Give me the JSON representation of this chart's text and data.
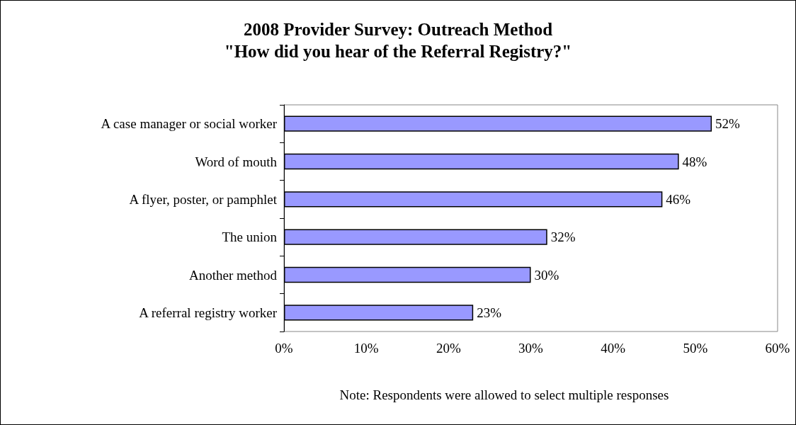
{
  "chart_data": {
    "type": "bar",
    "orientation": "horizontal",
    "title": "2008 Provider Survey: Outreach Method",
    "subtitle": "\"How did you hear of the Referral Registry?\"",
    "categories": [
      "A case manager or social worker",
      "Word of mouth",
      "A flyer, poster, or pamphlet",
      "The union",
      "Another method",
      "A referral registry worker"
    ],
    "values": [
      52,
      48,
      46,
      32,
      30,
      23
    ],
    "value_labels": [
      "52%",
      "48%",
      "46%",
      "32%",
      "30%",
      "23%"
    ],
    "color": "#9999ff",
    "xlim": [
      0,
      60
    ],
    "xticks": [
      {
        "value": 0,
        "label": "0%"
      },
      {
        "value": 10,
        "label": "10%"
      },
      {
        "value": 20,
        "label": "20%"
      },
      {
        "value": 30,
        "label": "30%"
      },
      {
        "value": 40,
        "label": "40%"
      },
      {
        "value": 50,
        "label": "50%"
      },
      {
        "value": 60,
        "label": "60%"
      }
    ],
    "annotations": [
      "Note: Respondents were allowed to select multiple responses"
    ]
  }
}
